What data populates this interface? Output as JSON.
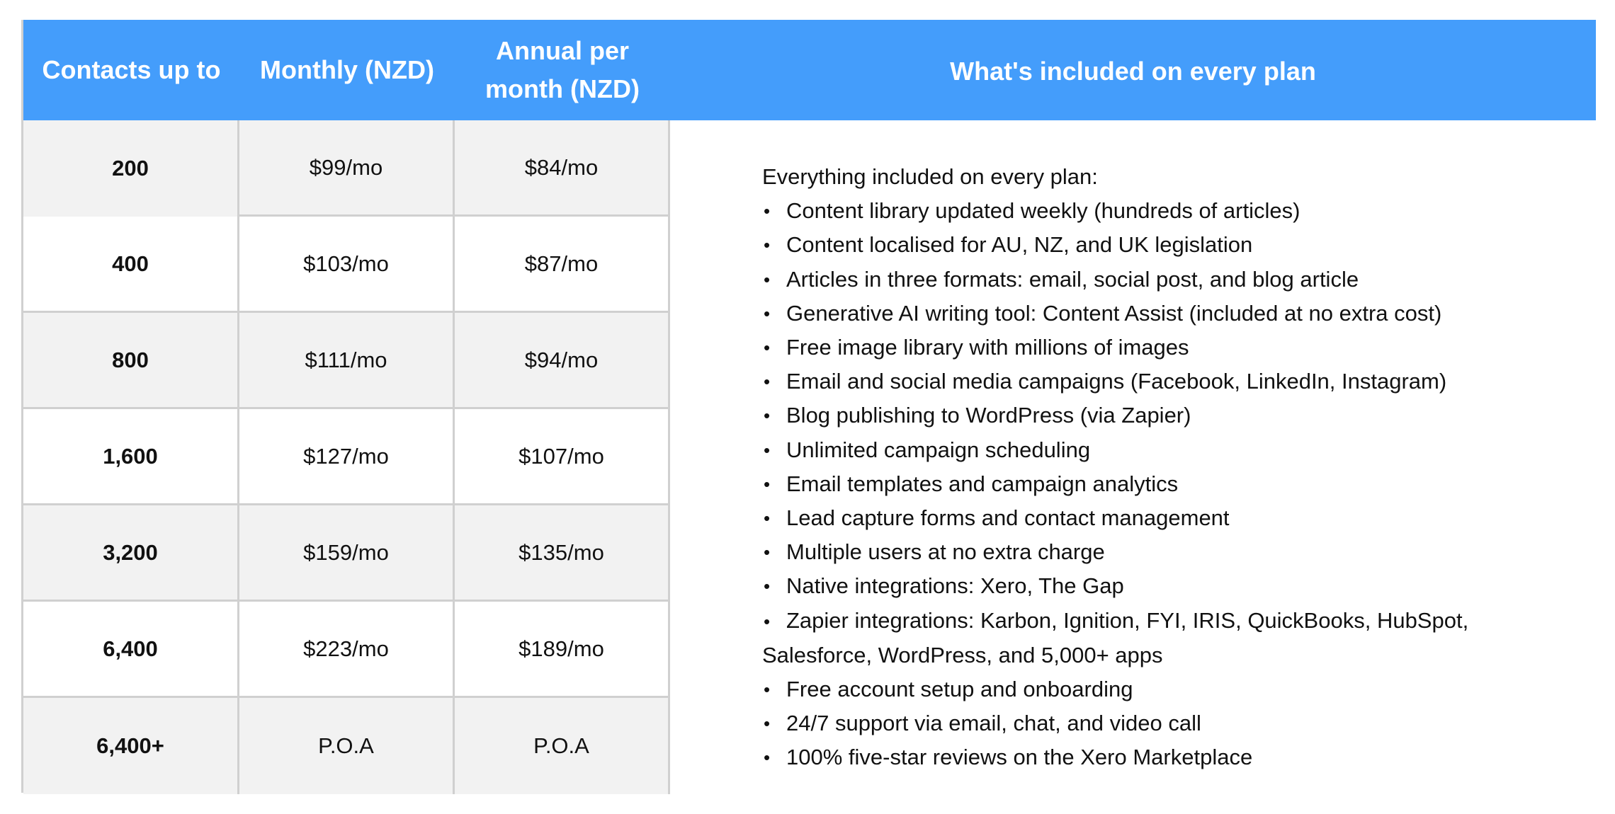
{
  "headers": {
    "contacts": "Contacts up to",
    "monthly": "Monthly (NZD)",
    "annual": "Annual per\nmonth (NZD)",
    "included": "What's included on every plan"
  },
  "rows": [
    {
      "contacts": "200",
      "monthly": "$99/mo",
      "annual": "$84/mo"
    },
    {
      "contacts": "400",
      "monthly": "$103/mo",
      "annual": "$87/mo"
    },
    {
      "contacts": "800",
      "monthly": "$111/mo",
      "annual": "$94/mo"
    },
    {
      "contacts": "1,600",
      "monthly": "$127/mo",
      "annual": "$107/mo"
    },
    {
      "contacts": "3,200",
      "monthly": "$159/mo",
      "annual": "$135/mo"
    },
    {
      "contacts": "6,400",
      "monthly": "$223/mo",
      "annual": "$189/mo"
    },
    {
      "contacts": "6,400+",
      "monthly": "P.O.A",
      "annual": "P.O.A"
    }
  ],
  "features": {
    "intro": "Everything included on every plan:",
    "items": [
      "Content library updated weekly (hundreds of articles)",
      "Content localised for AU, NZ, and UK legislation",
      "Articles in three formats: email, social post, and blog article",
      "Generative AI writing tool: Content Assist (included at no extra cost)",
      "Free image library with millions of images",
      "Email and social media campaigns (Facebook, LinkedIn, Instagram)",
      "Blog publishing to WordPress (via Zapier)",
      "Unlimited campaign scheduling",
      "Email templates and campaign analytics",
      "Lead capture forms and contact management",
      "Multiple users at no extra charge",
      "Native integrations: Xero, The Gap",
      "Zapier integrations: Karbon, Ignition, FYI, IRIS, QuickBooks, HubSpot, Salesforce, WordPress, and 5,000+ apps",
      "Free account setup and onboarding",
      "24/7 support via email, chat, and video call",
      "100% five-star reviews on the Xero Marketplace"
    ]
  }
}
